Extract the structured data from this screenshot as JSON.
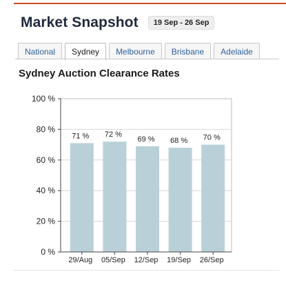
{
  "header": {
    "title": "Market Snapshot",
    "date_range": "19 Sep - 26 Sep"
  },
  "tabs": [
    {
      "label": "National",
      "active": false
    },
    {
      "label": "Sydney",
      "active": true
    },
    {
      "label": "Melbourne",
      "active": false
    },
    {
      "label": "Brisbane",
      "active": false
    },
    {
      "label": "Adelaide",
      "active": false
    }
  ],
  "colors": {
    "accent_rule": "#d24a1e",
    "bar": "#b9d0d8",
    "tab_link": "#2f5f9a"
  },
  "chart_data": {
    "type": "bar",
    "title": "Sydney Auction Clearance Rates",
    "xlabel": "",
    "ylabel": "",
    "categories": [
      "29/Aug",
      "05/Sep",
      "12/Sep",
      "19/Sep",
      "26/Sep"
    ],
    "values": [
      71,
      72,
      69,
      68,
      70
    ],
    "data_labels": [
      "71 %",
      "72 %",
      "69 %",
      "68 %",
      "70 %"
    ],
    "ylim": [
      0,
      100
    ],
    "yticks": [
      0,
      20,
      40,
      60,
      80,
      100
    ],
    "ytick_labels": [
      "0 %",
      "20 %",
      "40 %",
      "60 %",
      "80 %",
      "100 %"
    ],
    "grid": true,
    "legend": "none"
  }
}
